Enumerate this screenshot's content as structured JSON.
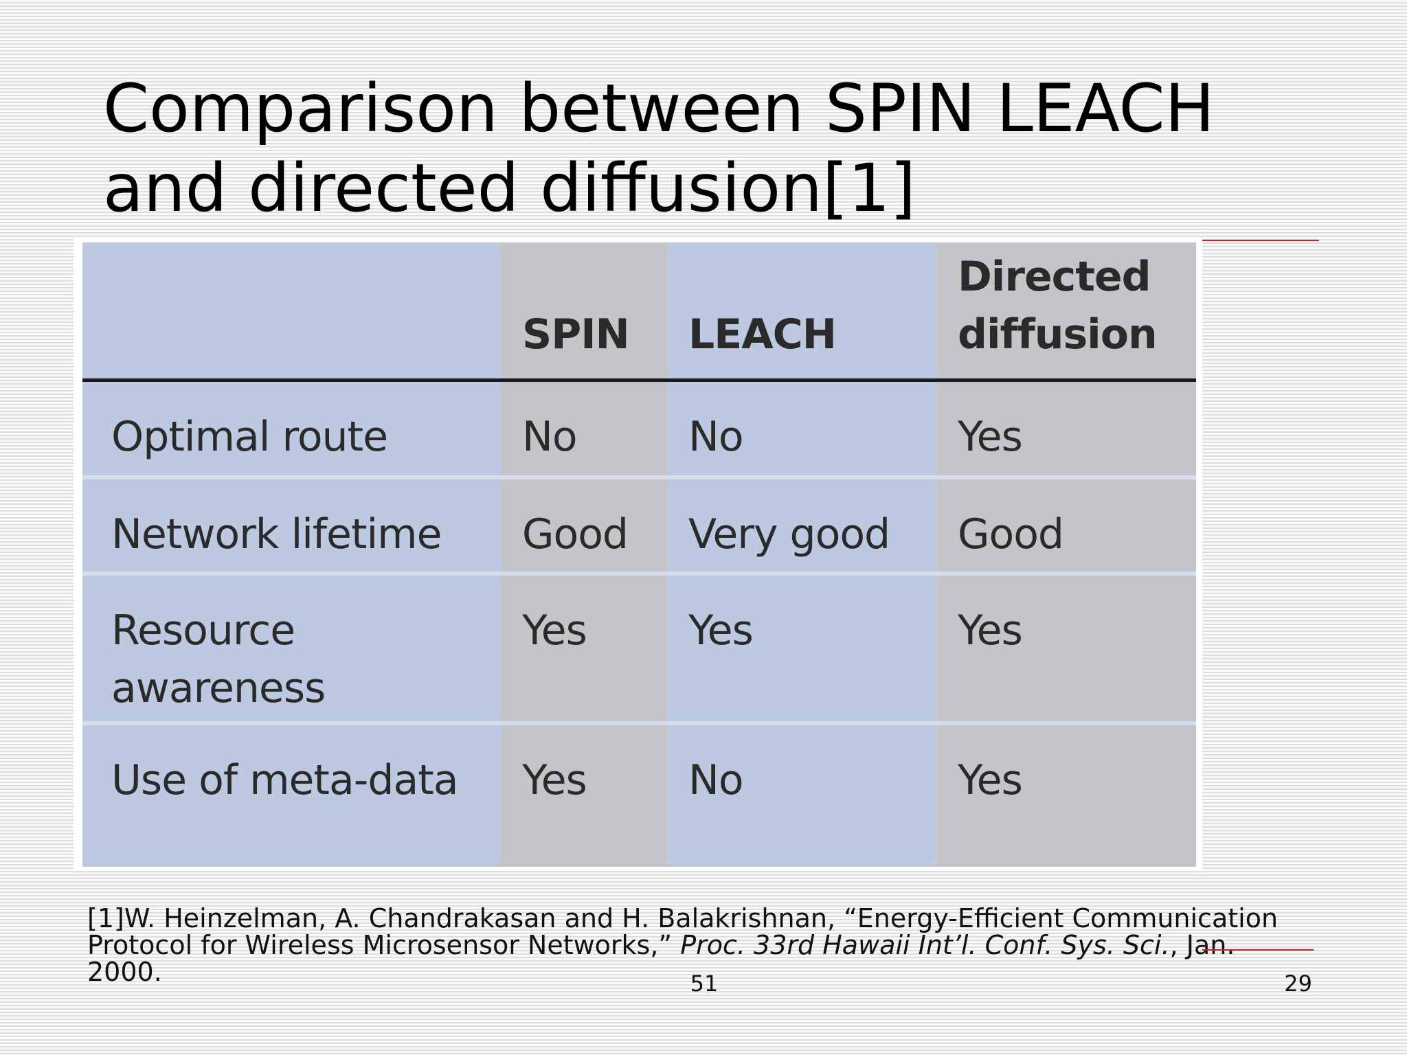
{
  "slide": {
    "title_line1": "Comparison between SPIN LEACH",
    "title_line2": "and directed diffusion[1]"
  },
  "table": {
    "headers": [
      "",
      "SPIN",
      "LEACH",
      "Directed diffusion"
    ],
    "header_dd_line1": "Directed",
    "header_dd_line2": "diffusion",
    "rows": [
      {
        "label": "Optimal route",
        "spin": "No",
        "leach": "No",
        "dd": "Yes"
      },
      {
        "label": "Network lifetime",
        "spin": "Good",
        "leach": "Very good",
        "dd": "Good"
      },
      {
        "label": "Resource awareness",
        "label_line1": "Resource",
        "label_line2": "awareness",
        "spin": "Yes",
        "leach": "Yes",
        "dd": "Yes"
      },
      {
        "label": "Use of meta-data",
        "spin": "Yes",
        "leach": "No",
        "dd": "Yes"
      }
    ]
  },
  "citation": {
    "prefix": "[1]W. Heinzelman, A. Chandrakasan and H. Balakrishnan, “Energy-Efficient Communication Protocol for Wireless Microsensor Networks,” ",
    "journal_italic": "Proc. 33rd Hawaii Int’l. Conf. Sys. Sci.",
    "suffix": ", Jan. 2000."
  },
  "footer": {
    "center_number": "51",
    "page_number": "29"
  },
  "colors": {
    "accent_rule": "#cc2222",
    "table_blue": "#bdc9e1",
    "table_gray": "#c5c5c9"
  }
}
